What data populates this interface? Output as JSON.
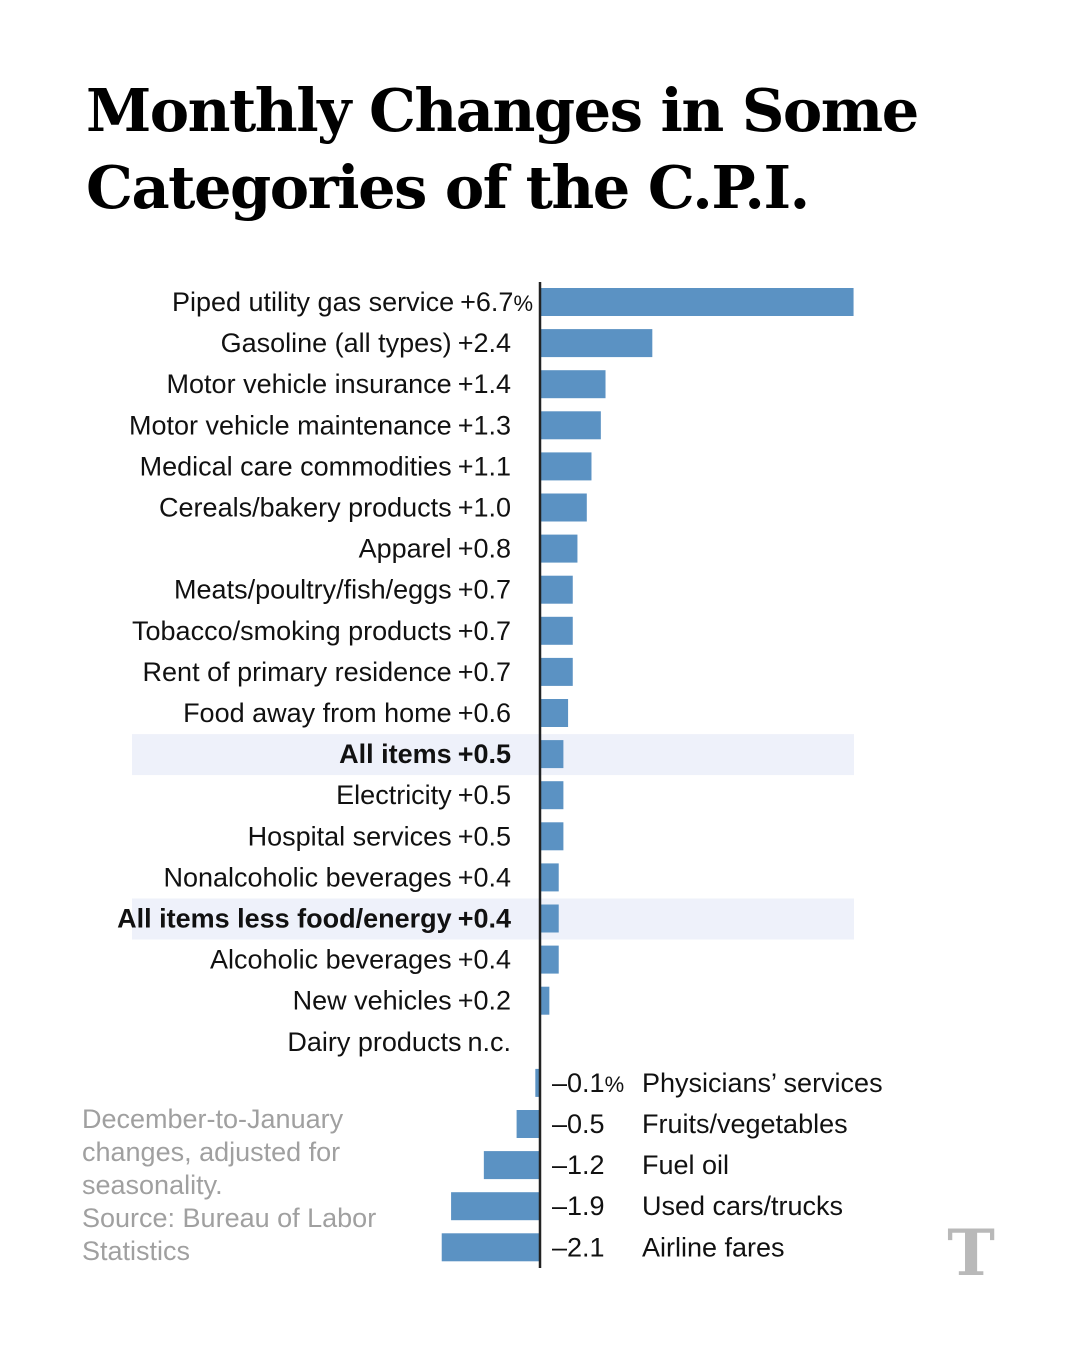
{
  "title": "Monthly Changes in Some Categories of the C.P.I.",
  "note": "December-to-January changes, adjusted for seasonality.",
  "source": "Source: Bureau of Labor Statistics",
  "logo_text": "T",
  "colors": {
    "bar": "#5b92c3",
    "highlight": "#eef1fa",
    "axis": "#222222",
    "note": "#a0a0a0"
  },
  "chart_data": {
    "type": "bar",
    "orientation": "horizontal",
    "unit": "%",
    "categories": [
      "Piped utility gas service",
      "Gasoline (all types)",
      "Motor vehicle insurance",
      "Motor vehicle maintenance",
      "Medical care commodities",
      "Cereals/bakery products",
      "Apparel",
      "Meats/poultry/fish/eggs",
      "Tobacco/smoking products",
      "Rent of primary residence",
      "Food away from home",
      "All items",
      "Electricity",
      "Hospital services",
      "Nonalcoholic beverages",
      "All items less food/energy",
      "Alcoholic beverages",
      "New vehicles",
      "Dairy products",
      "Physicians’ services",
      "Fruits/vegetables",
      "Fuel oil",
      "Used cars/trucks",
      "Airline fares"
    ],
    "values": [
      6.7,
      2.4,
      1.4,
      1.3,
      1.1,
      1.0,
      0.8,
      0.7,
      0.7,
      0.7,
      0.6,
      0.5,
      0.5,
      0.5,
      0.4,
      0.4,
      0.4,
      0.2,
      0,
      -0.1,
      -0.5,
      -1.2,
      -1.9,
      -2.1
    ],
    "value_labels": [
      "+6.7%",
      "+2.4",
      "+1.4",
      "+1.3",
      "+1.1",
      "+1.0",
      "+0.8",
      "+0.7",
      "+0.7",
      "+0.7",
      "+0.6",
      "+0.5",
      "+0.5",
      "+0.5",
      "+0.4",
      "+0.4",
      "+0.4",
      "+0.2",
      "n.c.",
      "–0.1%",
      "–0.5",
      "–1.2",
      "–1.9",
      "–2.1"
    ],
    "highlighted": [
      "All items",
      "All items less food/energy"
    ]
  }
}
